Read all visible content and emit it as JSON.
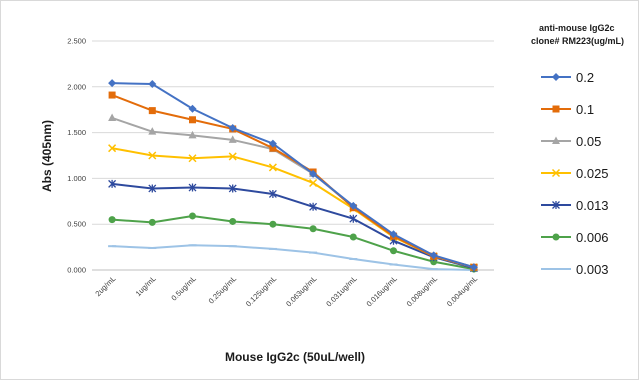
{
  "chart_data": {
    "type": "line",
    "xlabel": "Mouse IgG2c (50uL/well)",
    "ylabel": "Abs (405nm)",
    "ylim": [
      0,
      2.5
    ],
    "yticks": [
      0,
      0.5,
      1.0,
      1.5,
      2.0,
      2.5
    ],
    "ytick_labels": [
      "0.000",
      "0.500",
      "1.000",
      "1.500",
      "2.000",
      "2.500"
    ],
    "grid": "horizontal",
    "legend_position": "right",
    "legend_title_line1": "anti-mouse IgG2c",
    "legend_title_line2": "clone# RM223(ug/mL)",
    "categories": [
      "2ug/mL",
      "1ug/mL",
      "0.5ug/mL",
      "0.25ug/mL",
      "0.125ug/mL",
      "0.063ug/mL",
      "0.031ug/mL",
      "0.016ug/mL",
      "0.008ug/mL",
      "0.004ug/mL"
    ],
    "series": [
      {
        "name": "0.2",
        "color": "#4472c4",
        "marker": "diamond",
        "values": [
          2.04,
          2.03,
          1.76,
          1.55,
          1.38,
          1.05,
          0.7,
          0.39,
          0.16,
          0.03
        ]
      },
      {
        "name": "0.1",
        "color": "#e36c0a",
        "marker": "square",
        "values": [
          1.91,
          1.74,
          1.64,
          1.54,
          1.33,
          1.07,
          0.68,
          0.37,
          0.15,
          0.03
        ]
      },
      {
        "name": "0.05",
        "color": "#a5a5a5",
        "marker": "triangle",
        "values": [
          1.66,
          1.51,
          1.47,
          1.42,
          1.32,
          1.05,
          0.69,
          0.38,
          0.15,
          0.03
        ]
      },
      {
        "name": "0.025",
        "color": "#ffc000",
        "marker": "x",
        "values": [
          1.33,
          1.25,
          1.22,
          1.24,
          1.12,
          0.95,
          0.67,
          0.36,
          0.15,
          0.03
        ]
      },
      {
        "name": "0.013",
        "color": "#2e4a9e",
        "marker": "asterisk",
        "values": [
          0.94,
          0.89,
          0.9,
          0.89,
          0.83,
          0.69,
          0.56,
          0.32,
          0.14,
          0.02
        ]
      },
      {
        "name": "0.006",
        "color": "#4ea24a",
        "marker": "circle",
        "values": [
          0.55,
          0.52,
          0.59,
          0.53,
          0.5,
          0.45,
          0.36,
          0.21,
          0.09,
          0.01
        ]
      },
      {
        "name": "0.003",
        "color": "#9dc3e6",
        "marker": "dash",
        "values": [
          0.26,
          0.24,
          0.27,
          0.26,
          0.23,
          0.19,
          0.12,
          0.06,
          0.01,
          0.0
        ]
      }
    ]
  }
}
